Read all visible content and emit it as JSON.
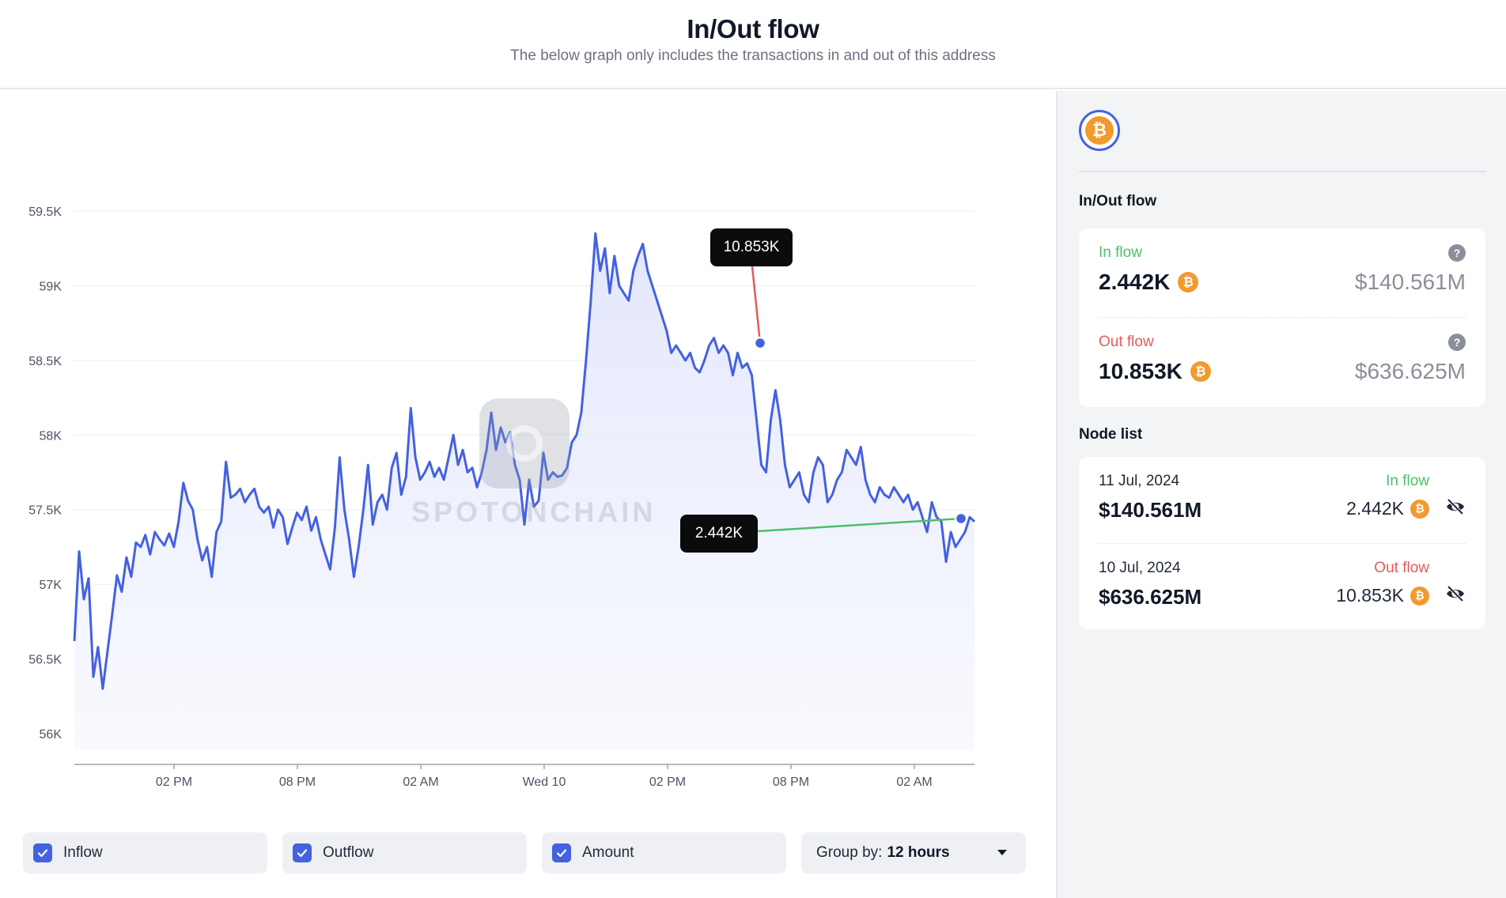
{
  "header": {
    "title": "In/Out flow",
    "subtitle": "The below graph only includes the transactions in and out of this address"
  },
  "chart_data": {
    "type": "area",
    "title": "",
    "ylim": [
      56000,
      59500
    ],
    "y_ticks": [
      "56K",
      "56.5K",
      "57K",
      "57.5K",
      "58K",
      "58.5K",
      "59K",
      "59.5K"
    ],
    "x_ticks": [
      "02 PM",
      "08 PM",
      "02 AM",
      "Wed 10",
      "02 PM",
      "08 PM",
      "02 AM"
    ],
    "watermark": "SPOTONCHAIN",
    "series": [
      {
        "points": [
          [
            0.0,
            56620
          ],
          [
            0.3,
            57220
          ],
          [
            0.6,
            56900
          ],
          [
            0.9,
            57040
          ],
          [
            1.2,
            56380
          ],
          [
            1.5,
            56580
          ],
          [
            1.8,
            56300
          ],
          [
            2.1,
            56550
          ],
          [
            2.4,
            56800
          ],
          [
            2.7,
            57060
          ],
          [
            3.0,
            56950
          ],
          [
            3.3,
            57180
          ],
          [
            3.6,
            57050
          ],
          [
            3.9,
            57280
          ],
          [
            4.2,
            57250
          ],
          [
            4.5,
            57330
          ],
          [
            4.8,
            57200
          ],
          [
            5.1,
            57350
          ],
          [
            5.4,
            57300
          ],
          [
            5.7,
            57260
          ],
          [
            6.0,
            57340
          ],
          [
            6.3,
            57250
          ],
          [
            6.6,
            57420
          ],
          [
            6.9,
            57680
          ],
          [
            7.2,
            57560
          ],
          [
            7.5,
            57500
          ],
          [
            7.8,
            57300
          ],
          [
            8.1,
            57160
          ],
          [
            8.4,
            57250
          ],
          [
            8.7,
            57050
          ],
          [
            9.0,
            57350
          ],
          [
            9.3,
            57420
          ],
          [
            9.6,
            57820
          ],
          [
            9.9,
            57580
          ],
          [
            10.2,
            57600
          ],
          [
            10.5,
            57640
          ],
          [
            10.8,
            57550
          ],
          [
            11.1,
            57600
          ],
          [
            11.4,
            57640
          ],
          [
            11.7,
            57520
          ],
          [
            12.0,
            57480
          ],
          [
            12.3,
            57520
          ],
          [
            12.6,
            57380
          ],
          [
            12.9,
            57500
          ],
          [
            13.2,
            57450
          ],
          [
            13.5,
            57270
          ],
          [
            13.8,
            57380
          ],
          [
            14.1,
            57480
          ],
          [
            14.4,
            57430
          ],
          [
            14.7,
            57520
          ],
          [
            15.0,
            57360
          ],
          [
            15.3,
            57450
          ],
          [
            15.6,
            57300
          ],
          [
            15.9,
            57200
          ],
          [
            16.2,
            57100
          ],
          [
            16.5,
            57380
          ],
          [
            16.8,
            57850
          ],
          [
            17.1,
            57500
          ],
          [
            17.4,
            57300
          ],
          [
            17.7,
            57050
          ],
          [
            18.0,
            57250
          ],
          [
            18.3,
            57500
          ],
          [
            18.6,
            57800
          ],
          [
            18.9,
            57400
          ],
          [
            19.2,
            57550
          ],
          [
            19.5,
            57600
          ],
          [
            19.8,
            57500
          ],
          [
            20.1,
            57780
          ],
          [
            20.4,
            57880
          ],
          [
            20.7,
            57600
          ],
          [
            21.0,
            57720
          ],
          [
            21.3,
            58180
          ],
          [
            21.6,
            57850
          ],
          [
            21.9,
            57700
          ],
          [
            22.2,
            57750
          ],
          [
            22.5,
            57820
          ],
          [
            22.8,
            57720
          ],
          [
            23.1,
            57780
          ],
          [
            23.4,
            57700
          ],
          [
            23.7,
            57850
          ],
          [
            24.0,
            58000
          ],
          [
            24.3,
            57800
          ],
          [
            24.6,
            57900
          ],
          [
            24.9,
            57750
          ],
          [
            25.2,
            57780
          ],
          [
            25.5,
            57650
          ],
          [
            25.8,
            57750
          ],
          [
            26.1,
            57900
          ],
          [
            26.4,
            58150
          ],
          [
            26.7,
            57900
          ],
          [
            27.0,
            58050
          ],
          [
            27.3,
            57950
          ],
          [
            27.6,
            58020
          ],
          [
            27.9,
            57800
          ],
          [
            28.2,
            57700
          ],
          [
            28.5,
            57400
          ],
          [
            28.8,
            57700
          ],
          [
            29.1,
            57520
          ],
          [
            29.4,
            57560
          ],
          [
            29.7,
            57880
          ],
          [
            30.0,
            57700
          ],
          [
            30.3,
            57750
          ],
          [
            30.6,
            57720
          ],
          [
            30.9,
            57730
          ],
          [
            31.2,
            57780
          ],
          [
            31.5,
            57950
          ],
          [
            31.8,
            58000
          ],
          [
            32.1,
            58150
          ],
          [
            32.4,
            58500
          ],
          [
            32.7,
            58900
          ],
          [
            33.0,
            59350
          ],
          [
            33.3,
            59100
          ],
          [
            33.6,
            59250
          ],
          [
            33.9,
            58950
          ],
          [
            34.2,
            59200
          ],
          [
            34.5,
            59000
          ],
          [
            34.8,
            58950
          ],
          [
            35.1,
            58900
          ],
          [
            35.4,
            59100
          ],
          [
            35.7,
            59200
          ],
          [
            36.0,
            59280
          ],
          [
            36.3,
            59100
          ],
          [
            36.6,
            59000
          ],
          [
            36.9,
            58900
          ],
          [
            37.2,
            58800
          ],
          [
            37.5,
            58700
          ],
          [
            37.8,
            58550
          ],
          [
            38.1,
            58600
          ],
          [
            38.4,
            58550
          ],
          [
            38.7,
            58500
          ],
          [
            39.0,
            58550
          ],
          [
            39.3,
            58450
          ],
          [
            39.6,
            58420
          ],
          [
            39.9,
            58500
          ],
          [
            40.2,
            58600
          ],
          [
            40.5,
            58650
          ],
          [
            40.8,
            58550
          ],
          [
            41.1,
            58600
          ],
          [
            41.4,
            58550
          ],
          [
            41.7,
            58400
          ],
          [
            42.0,
            58550
          ],
          [
            42.3,
            58450
          ],
          [
            42.6,
            58480
          ],
          [
            42.9,
            58400
          ],
          [
            43.2,
            58100
          ],
          [
            43.5,
            57800
          ],
          [
            43.8,
            57750
          ],
          [
            44.1,
            58100
          ],
          [
            44.4,
            58300
          ],
          [
            44.7,
            58100
          ],
          [
            45.0,
            57800
          ],
          [
            45.3,
            57650
          ],
          [
            45.6,
            57700
          ],
          [
            45.9,
            57750
          ],
          [
            46.2,
            57600
          ],
          [
            46.5,
            57550
          ],
          [
            46.8,
            57750
          ],
          [
            47.1,
            57850
          ],
          [
            47.4,
            57800
          ],
          [
            47.7,
            57550
          ],
          [
            48.0,
            57600
          ],
          [
            48.3,
            57700
          ],
          [
            48.6,
            57750
          ],
          [
            48.9,
            57900
          ],
          [
            49.2,
            57850
          ],
          [
            49.5,
            57800
          ],
          [
            49.8,
            57920
          ],
          [
            50.1,
            57700
          ],
          [
            50.4,
            57600
          ],
          [
            50.7,
            57550
          ],
          [
            51.0,
            57650
          ],
          [
            51.3,
            57600
          ],
          [
            51.6,
            57580
          ],
          [
            51.9,
            57650
          ],
          [
            52.2,
            57600
          ],
          [
            52.5,
            57550
          ],
          [
            52.8,
            57600
          ],
          [
            53.1,
            57500
          ],
          [
            53.4,
            57550
          ],
          [
            53.7,
            57450
          ],
          [
            54.0,
            57350
          ],
          [
            54.3,
            57550
          ],
          [
            54.6,
            57450
          ],
          [
            54.9,
            57420
          ],
          [
            55.2,
            57150
          ],
          [
            55.5,
            57350
          ],
          [
            55.8,
            57250
          ],
          [
            56.1,
            57300
          ],
          [
            56.4,
            57350
          ],
          [
            56.7,
            57450
          ],
          [
            57.0,
            57420
          ]
        ]
      }
    ]
  },
  "tooltips": {
    "outflow_value": "10.853K",
    "inflow_value": "2.442K"
  },
  "colors": {
    "line": "#4461e0",
    "inflow": "#4cc06a",
    "outflow": "#e45a5a",
    "btc": "#f29a2e"
  },
  "controls": {
    "checkboxes": [
      {
        "label": "Inflow",
        "checked": true
      },
      {
        "label": "Outflow",
        "checked": true
      },
      {
        "label": "Amount",
        "checked": true
      }
    ],
    "group_by_label": "Group by:",
    "group_by_value": "12 hours"
  },
  "side": {
    "token_icon": "bitcoin-icon",
    "inout_title": "In/Out flow",
    "inflow": {
      "label": "In flow",
      "amount": "2.442K",
      "usd": "$140.561M"
    },
    "outflow": {
      "label": "Out flow",
      "amount": "10.853K",
      "usd": "$636.625M"
    },
    "node_title": "Node list",
    "nodes": [
      {
        "date": "11 Jul, 2024",
        "usd": "$140.561M",
        "kind": "In flow",
        "amount": "2.442K"
      },
      {
        "date": "10 Jul, 2024",
        "usd": "$636.625M",
        "kind": "Out flow",
        "amount": "10.853K"
      }
    ]
  }
}
